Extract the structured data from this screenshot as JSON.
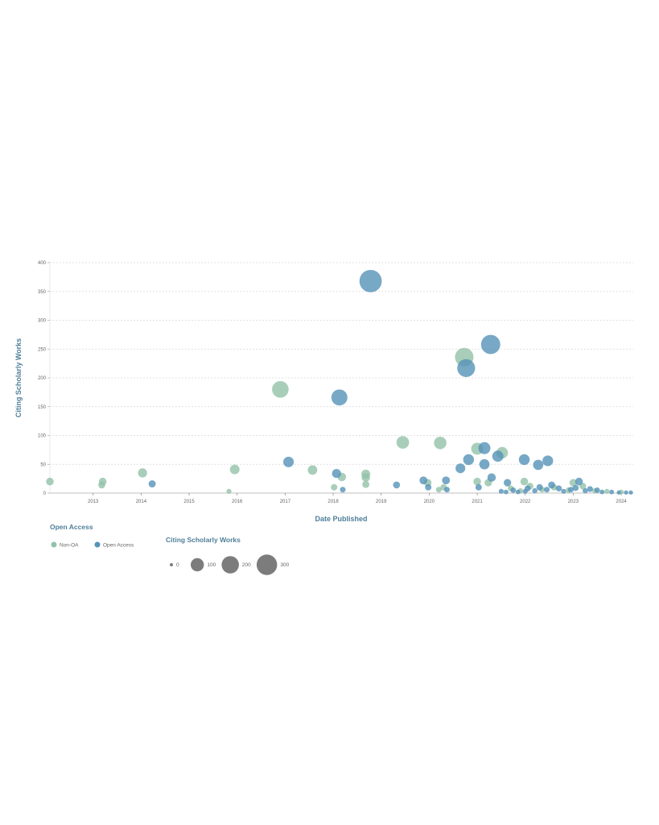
{
  "chart_data": {
    "type": "scatter",
    "subtype": "bubble",
    "xlabel": "Date Published",
    "ylabel": "Citing Scholarly Works",
    "xlim": [
      2012.1,
      2024.25
    ],
    "ylim": [
      0,
      400
    ],
    "x_ticks": [
      "2013",
      "2014",
      "2015",
      "2016",
      "2017",
      "2018",
      "2019",
      "2020",
      "2021",
      "2022",
      "2023",
      "2024"
    ],
    "y_ticks": [
      0,
      50,
      100,
      150,
      200,
      250,
      300,
      350,
      400
    ],
    "grid": "horizontal dotted",
    "color_legend": {
      "title": "Open Access",
      "placement": "bottom-left",
      "entries": [
        {
          "name": "Non-OA",
          "color": "#92c2a9"
        },
        {
          "name": "Open Access",
          "color": "#5592b8"
        }
      ]
    },
    "size_legend": {
      "title": "Citing Scholarly Works",
      "values": [
        0,
        100,
        200,
        300
      ]
    },
    "series": [
      {
        "name": "Non-OA",
        "points": [
          [
            2012.1,
            20
          ],
          [
            2013.18,
            14
          ],
          [
            2013.2,
            20
          ],
          [
            2014.03,
            35
          ],
          [
            2015.83,
            3
          ],
          [
            2015.95,
            41
          ],
          [
            2016.9,
            180
          ],
          [
            2017.57,
            40
          ],
          [
            2018.02,
            10
          ],
          [
            2018.18,
            28
          ],
          [
            2018.68,
            33
          ],
          [
            2018.68,
            27
          ],
          [
            2018.68,
            15
          ],
          [
            2019.45,
            88
          ],
          [
            2019.97,
            18
          ],
          [
            2020.2,
            6
          ],
          [
            2020.3,
            10
          ],
          [
            2020.23,
            87
          ],
          [
            2020.73,
            236
          ],
          [
            2021.0,
            77
          ],
          [
            2021.0,
            20
          ],
          [
            2021.23,
            18
          ],
          [
            2021.52,
            70
          ],
          [
            2021.98,
            20
          ],
          [
            2023.0,
            18
          ],
          [
            2021.7,
            8
          ],
          [
            2021.9,
            4
          ],
          [
            2022.1,
            12
          ],
          [
            2022.35,
            6
          ],
          [
            2022.6,
            10
          ],
          [
            2022.9,
            5
          ],
          [
            2023.2,
            12
          ],
          [
            2023.45,
            4
          ],
          [
            2023.7,
            3
          ],
          [
            2024.0,
            2
          ]
        ]
      },
      {
        "name": "Open Access",
        "points": [
          [
            2014.23,
            16
          ],
          [
            2017.07,
            54
          ],
          [
            2018.07,
            34
          ],
          [
            2018.2,
            6
          ],
          [
            2018.13,
            166
          ],
          [
            2018.78,
            368
          ],
          [
            2019.32,
            14
          ],
          [
            2019.88,
            22
          ],
          [
            2019.98,
            10
          ],
          [
            2020.35,
            22
          ],
          [
            2020.37,
            6
          ],
          [
            2020.65,
            43
          ],
          [
            2020.77,
            217
          ],
          [
            2020.82,
            58
          ],
          [
            2021.03,
            10
          ],
          [
            2021.15,
            78
          ],
          [
            2021.15,
            50
          ],
          [
            2021.28,
            258
          ],
          [
            2021.3,
            27
          ],
          [
            2021.43,
            64
          ],
          [
            2021.63,
            18
          ],
          [
            2021.98,
            58
          ],
          [
            2022.27,
            49
          ],
          [
            2022.47,
            56
          ],
          [
            2023.12,
            20
          ],
          [
            2021.5,
            3
          ],
          [
            2021.6,
            2
          ],
          [
            2021.75,
            5
          ],
          [
            2021.85,
            2
          ],
          [
            2022.0,
            3
          ],
          [
            2022.05,
            8
          ],
          [
            2022.2,
            4
          ],
          [
            2022.3,
            10
          ],
          [
            2022.45,
            6
          ],
          [
            2022.55,
            14
          ],
          [
            2022.7,
            8
          ],
          [
            2022.8,
            3
          ],
          [
            2022.95,
            6
          ],
          [
            2023.05,
            9
          ],
          [
            2023.25,
            4
          ],
          [
            2023.35,
            7
          ],
          [
            2023.5,
            5
          ],
          [
            2023.6,
            2
          ],
          [
            2023.8,
            2
          ],
          [
            2023.95,
            1
          ],
          [
            2024.1,
            1
          ],
          [
            2024.2,
            1
          ]
        ]
      }
    ]
  }
}
